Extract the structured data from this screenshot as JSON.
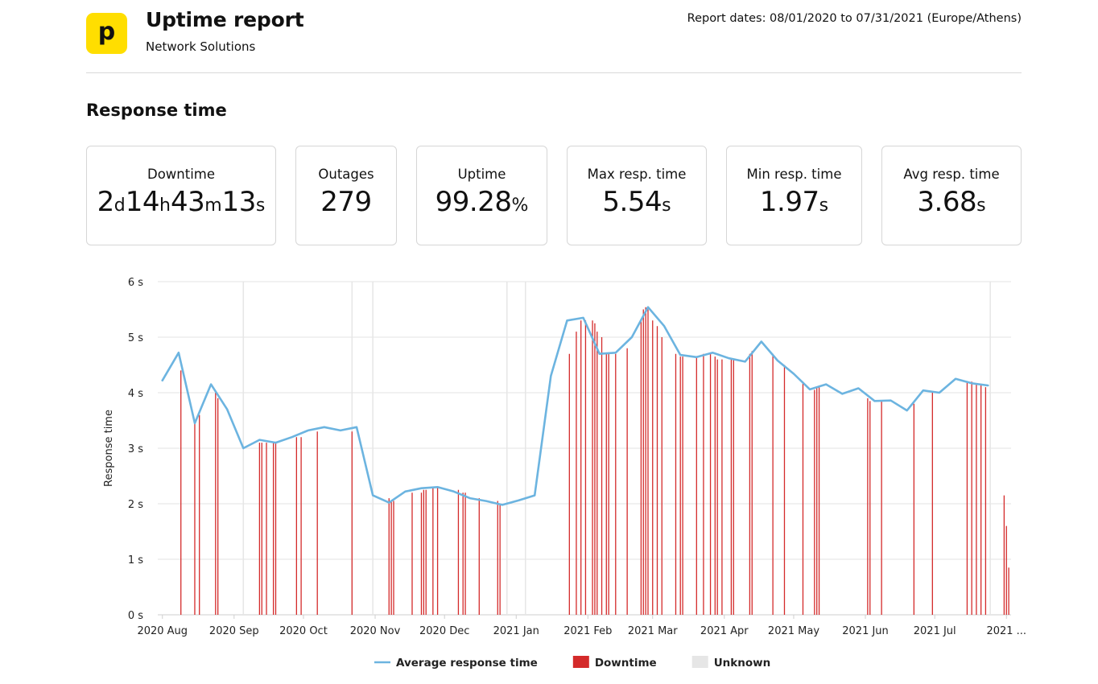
{
  "header": {
    "logo_glyph": "p",
    "title": "Uptime report",
    "subtitle": "Network Solutions",
    "report_dates": "Report dates: 08/01/2020 to 07/31/2021 (Europe/Athens)",
    "logo_color": "#ffde00"
  },
  "section_title": "Response time",
  "stats": {
    "downtime": {
      "label": "Downtime",
      "d": "2",
      "d_unit": "d",
      "h": "14",
      "h_unit": "h",
      "m": "43",
      "m_unit": "m",
      "s": "13",
      "s_unit": "s"
    },
    "outages": {
      "label": "Outages",
      "value": "279"
    },
    "uptime": {
      "label": "Uptime",
      "value": "99.28",
      "unit": "%"
    },
    "max_resp": {
      "label": "Max resp. time",
      "value": "5.54",
      "unit": "s"
    },
    "min_resp": {
      "label": "Min resp. time",
      "value": "1.97",
      "unit": "s"
    },
    "avg_resp": {
      "label": "Avg resp. time",
      "value": "3.68",
      "unit": "s"
    }
  },
  "chart_data": {
    "type": "line",
    "ylabel": "Response time",
    "ylim": [
      0,
      6
    ],
    "yticks": [
      "0 s",
      "1 s",
      "2 s",
      "3 s",
      "4 s",
      "5 s",
      "6 s"
    ],
    "xlim": [
      "2020-07-30",
      "2021-08-03"
    ],
    "xticks": [
      {
        "label": "2020 Aug",
        "date": "2020-08-01"
      },
      {
        "label": "2020 Sep",
        "date": "2020-09-01"
      },
      {
        "label": "2020 Oct",
        "date": "2020-10-01"
      },
      {
        "label": "2020 Nov",
        "date": "2020-11-01"
      },
      {
        "label": "2020 Dec",
        "date": "2020-12-01"
      },
      {
        "label": "2021 Jan",
        "date": "2021-01-01"
      },
      {
        "label": "2021 Feb",
        "date": "2021-02-01"
      },
      {
        "label": "2021 Mar",
        "date": "2021-03-01"
      },
      {
        "label": "2021 Apr",
        "date": "2021-04-01"
      },
      {
        "label": "2021 May",
        "date": "2021-05-01"
      },
      {
        "label": "2021 Jun",
        "date": "2021-06-01"
      },
      {
        "label": "2021 Jul",
        "date": "2021-07-01"
      },
      {
        "label": "2021 ...",
        "date": "2021-08-01"
      }
    ],
    "grid": true,
    "legend_position": "bottom",
    "legend": [
      {
        "label": "Average response time",
        "kind": "line",
        "color": "#6cb4e0"
      },
      {
        "label": "Downtime",
        "kind": "box",
        "color": "#d42a2a"
      },
      {
        "label": "Unknown",
        "kind": "box",
        "color": "#e6e6e6"
      }
    ],
    "series": [
      {
        "name": "Average response time",
        "color": "#6cb4e0",
        "points": [
          [
            "2020-08-01",
            4.22
          ],
          [
            "2020-08-08",
            4.72
          ],
          [
            "2020-08-15",
            3.45
          ],
          [
            "2020-08-22",
            4.15
          ],
          [
            "2020-08-29",
            3.7
          ],
          [
            "2020-09-05",
            3.0
          ],
          [
            "2020-09-12",
            3.15
          ],
          [
            "2020-09-19",
            3.1
          ],
          [
            "2020-09-26",
            3.2
          ],
          [
            "2020-10-03",
            3.32
          ],
          [
            "2020-10-10",
            3.38
          ],
          [
            "2020-10-17",
            3.32
          ],
          [
            "2020-10-24",
            3.38
          ],
          [
            "2020-10-31",
            2.15
          ],
          [
            "2020-11-07",
            2.02
          ],
          [
            "2020-11-14",
            2.22
          ],
          [
            "2020-11-21",
            2.28
          ],
          [
            "2020-11-28",
            2.3
          ],
          [
            "2020-12-05",
            2.22
          ],
          [
            "2020-12-12",
            2.1
          ],
          [
            "2020-12-19",
            2.05
          ],
          [
            "2020-12-26",
            1.98
          ],
          [
            "2021-01-02",
            2.06
          ],
          [
            "2021-01-09",
            2.15
          ],
          [
            "2021-01-16",
            4.3
          ],
          [
            "2021-01-23",
            5.3
          ],
          [
            "2021-01-30",
            5.35
          ],
          [
            "2021-02-06",
            4.7
          ],
          [
            "2021-02-13",
            4.72
          ],
          [
            "2021-02-20",
            5.0
          ],
          [
            "2021-02-27",
            5.54
          ],
          [
            "2021-03-06",
            5.2
          ],
          [
            "2021-03-13",
            4.68
          ],
          [
            "2021-03-20",
            4.64
          ],
          [
            "2021-03-27",
            4.72
          ],
          [
            "2021-04-03",
            4.62
          ],
          [
            "2021-04-10",
            4.56
          ],
          [
            "2021-04-17",
            4.92
          ],
          [
            "2021-04-24",
            4.58
          ],
          [
            "2021-05-01",
            4.34
          ],
          [
            "2021-05-08",
            4.06
          ],
          [
            "2021-05-15",
            4.15
          ],
          [
            "2021-05-22",
            3.98
          ],
          [
            "2021-05-29",
            4.08
          ],
          [
            "2021-06-05",
            3.85
          ],
          [
            "2021-06-12",
            3.86
          ],
          [
            "2021-06-19",
            3.68
          ],
          [
            "2021-06-26",
            4.04
          ],
          [
            "2021-07-03",
            4.0
          ],
          [
            "2021-07-10",
            4.25
          ],
          [
            "2021-07-17",
            4.17
          ],
          [
            "2021-07-24",
            4.13
          ]
        ]
      }
    ],
    "downtime": {
      "name": "Downtime",
      "color": "#d42a2a",
      "events": [
        [
          "2020-08-09",
          4.4
        ],
        [
          "2020-08-15",
          3.5
        ],
        [
          "2020-08-17",
          3.6
        ],
        [
          "2020-08-24",
          4.0
        ],
        [
          "2020-08-25",
          3.9
        ],
        [
          "2020-09-12",
          3.1
        ],
        [
          "2020-09-13",
          3.1
        ],
        [
          "2020-09-15",
          3.1
        ],
        [
          "2020-09-18",
          3.1
        ],
        [
          "2020-09-19",
          3.1
        ],
        [
          "2020-09-28",
          3.2
        ],
        [
          "2020-09-30",
          3.2
        ],
        [
          "2020-10-07",
          3.3
        ],
        [
          "2020-10-22",
          3.3
        ],
        [
          "2020-11-07",
          2.1
        ],
        [
          "2020-11-08",
          2.05
        ],
        [
          "2020-11-09",
          2.05
        ],
        [
          "2020-11-17",
          2.2
        ],
        [
          "2020-11-21",
          2.2
        ],
        [
          "2020-11-22",
          2.25
        ],
        [
          "2020-11-23",
          2.25
        ],
        [
          "2020-11-26",
          2.3
        ],
        [
          "2020-11-28",
          2.3
        ],
        [
          "2020-12-07",
          2.25
        ],
        [
          "2020-12-09",
          2.2
        ],
        [
          "2020-12-10",
          2.2
        ],
        [
          "2020-12-16",
          2.1
        ],
        [
          "2020-12-24",
          2.05
        ],
        [
          "2020-12-25",
          2.0
        ],
        [
          "2021-01-24",
          4.7
        ],
        [
          "2021-01-27",
          5.1
        ],
        [
          "2021-01-29",
          5.3
        ],
        [
          "2021-01-31",
          5.3
        ],
        [
          "2021-02-03",
          5.3
        ],
        [
          "2021-02-04",
          5.25
        ],
        [
          "2021-02-05",
          5.1
        ],
        [
          "2021-02-07",
          5.0
        ],
        [
          "2021-02-09",
          4.7
        ],
        [
          "2021-02-10",
          4.7
        ],
        [
          "2021-02-13",
          4.7
        ],
        [
          "2021-02-18",
          4.8
        ],
        [
          "2021-02-24",
          5.3
        ],
        [
          "2021-02-25",
          5.5
        ],
        [
          "2021-02-26",
          5.54
        ],
        [
          "2021-02-27",
          5.5
        ],
        [
          "2021-03-01",
          5.3
        ],
        [
          "2021-03-03",
          5.2
        ],
        [
          "2021-03-05",
          5.0
        ],
        [
          "2021-03-11",
          4.7
        ],
        [
          "2021-03-13",
          4.65
        ],
        [
          "2021-03-14",
          4.65
        ],
        [
          "2021-03-20",
          4.65
        ],
        [
          "2021-03-23",
          4.7
        ],
        [
          "2021-03-26",
          4.7
        ],
        [
          "2021-03-28",
          4.65
        ],
        [
          "2021-03-29",
          4.6
        ],
        [
          "2021-03-31",
          4.6
        ],
        [
          "2021-04-04",
          4.6
        ],
        [
          "2021-04-05",
          4.6
        ],
        [
          "2021-04-12",
          4.7
        ],
        [
          "2021-04-13",
          4.75
        ],
        [
          "2021-04-22",
          4.7
        ],
        [
          "2021-04-27",
          4.5
        ],
        [
          "2021-05-05",
          4.2
        ],
        [
          "2021-05-10",
          4.05
        ],
        [
          "2021-05-11",
          4.1
        ],
        [
          "2021-05-12",
          4.1
        ],
        [
          "2021-06-02",
          3.9
        ],
        [
          "2021-06-03",
          3.85
        ],
        [
          "2021-06-08",
          3.85
        ],
        [
          "2021-06-22",
          3.8
        ],
        [
          "2021-06-30",
          4.0
        ],
        [
          "2021-07-15",
          4.2
        ],
        [
          "2021-07-17",
          4.2
        ],
        [
          "2021-07-19",
          4.15
        ],
        [
          "2021-07-21",
          4.15
        ],
        [
          "2021-07-23",
          4.1
        ],
        [
          "2021-07-31",
          2.15
        ],
        [
          "2021-08-01",
          1.6
        ],
        [
          "2021-08-02",
          0.85
        ]
      ]
    },
    "unknown": {
      "name": "Unknown",
      "color": "#e6e6e6",
      "dates": [
        "2020-09-05",
        "2020-10-22",
        "2020-10-31",
        "2020-12-28",
        "2021-01-05",
        "2021-07-25"
      ]
    }
  }
}
